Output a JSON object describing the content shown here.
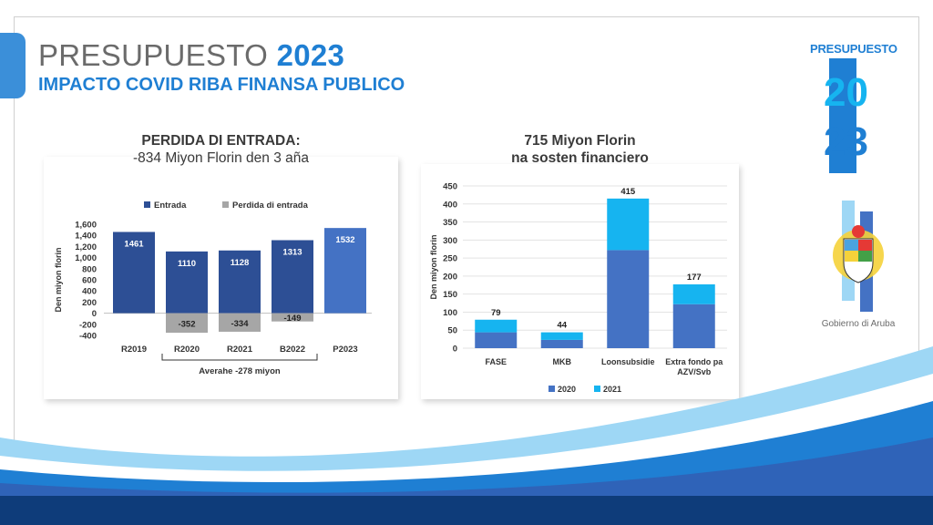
{
  "header": {
    "title_word": "PRESUPUESTO",
    "title_year": "2023",
    "subtitle": "IMPACTO COVID RIBA FINANSA PUBLICO"
  },
  "logo": {
    "word": "PRESUPUESTO",
    "year_graphic": "2023"
  },
  "government": {
    "label": "Gobierno di Aruba",
    "icon": "coat-of-arms-icon"
  },
  "colors": {
    "brand_blue": "#1f7fd3",
    "entrada": "#2d4f95",
    "entrada_projection": "#4472c4",
    "perdida": "#a6a6a6",
    "series_2020": "#4472c4",
    "series_2021": "#16b4f0",
    "footer": "#0e3c7a"
  },
  "chart_data": [
    {
      "type": "bar",
      "title_line1": "PERDIDA DI ENTRADA:",
      "title_line2": "-834 Miyon Florin den 3 aña",
      "ylabel": "Den miyon florin",
      "categories": [
        "R2019",
        "R2020",
        "R2021",
        "B2022",
        "P2023"
      ],
      "series": [
        {
          "name": "Entrada",
          "values": [
            1461,
            1110,
            1128,
            1313,
            1532
          ]
        },
        {
          "name": "Perdida di entrada",
          "values": [
            null,
            -352,
            -334,
            -149,
            null
          ]
        }
      ],
      "ylim": [
        -400,
        1600
      ],
      "yticks": [
        1600,
        1400,
        1200,
        1000,
        800,
        600,
        400,
        200,
        0,
        -200,
        -400
      ],
      "ytick_labels": [
        "1,600",
        "1,400",
        "1,200",
        "1,000",
        "800",
        "600",
        "400",
        "200",
        "0",
        "-200",
        "-400"
      ],
      "annotation": "Averahe -278 miyon",
      "legend_position": "top",
      "grid": false
    },
    {
      "type": "bar",
      "stacked": true,
      "title_line1": "715 Miyon Florin",
      "title_line2": "na sosten financiero",
      "ylabel": "Den miyon florin",
      "categories": [
        "FASE",
        "MKB",
        "Loonsubsidie",
        "Extra fondo pa AZV/Svb"
      ],
      "category_lines": [
        [
          "FASE"
        ],
        [
          "MKB"
        ],
        [
          "Loonsubsidie"
        ],
        [
          "Extra fondo pa",
          "AZV/Svb"
        ]
      ],
      "series": [
        {
          "name": "2020",
          "values": [
            44,
            23,
            272,
            122
          ]
        },
        {
          "name": "2021",
          "values": [
            35,
            21,
            143,
            55
          ]
        }
      ],
      "totals": [
        79,
        44,
        415,
        177
      ],
      "ylim": [
        0,
        450
      ],
      "yticks": [
        0,
        50,
        100,
        150,
        200,
        250,
        300,
        350,
        400,
        450
      ],
      "legend_position": "bottom",
      "grid": true
    }
  ]
}
